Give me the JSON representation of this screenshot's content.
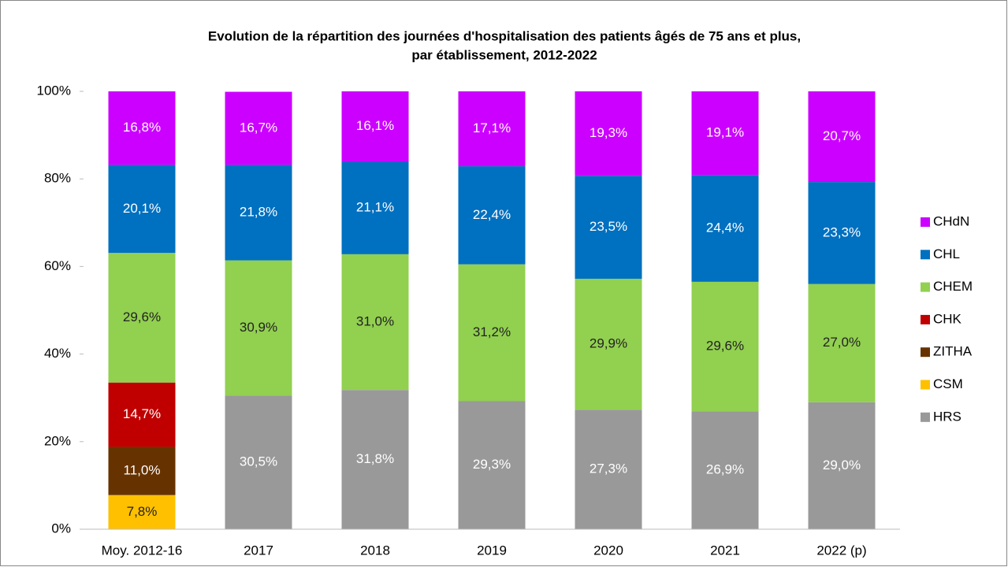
{
  "chart_data": {
    "type": "stacked_bar",
    "title": [
      "Evolution de la répartition des journées d'hospitalisation des patients âgés de 75 ans et plus,",
      "par établissement, 2012-2022"
    ],
    "categories": [
      "Moy. 2012-16",
      "2017",
      "2018",
      "2019",
      "2020",
      "2021",
      "2022 (p)"
    ],
    "series": [
      {
        "name": "HRS",
        "color": "#999999",
        "values": [
          null,
          30.5,
          31.8,
          29.3,
          27.3,
          26.9,
          29.0
        ],
        "value_labels": [
          null,
          "30,5%",
          "31,8%",
          "29,3%",
          "27,3%",
          "26,9%",
          "29,0%"
        ]
      },
      {
        "name": "CSM",
        "color": "#ffc000",
        "values": [
          7.8,
          null,
          null,
          null,
          null,
          null,
          null
        ],
        "value_labels": [
          "7,8%",
          null,
          null,
          null,
          null,
          null,
          null
        ]
      },
      {
        "name": "ZITHA",
        "color": "#663300",
        "values": [
          11.0,
          null,
          null,
          null,
          null,
          null,
          null
        ],
        "value_labels": [
          "11,0%",
          null,
          null,
          null,
          null,
          null,
          null
        ]
      },
      {
        "name": "CHK",
        "color": "#c00000",
        "values": [
          14.7,
          null,
          null,
          null,
          null,
          null,
          null
        ],
        "value_labels": [
          "14,7%",
          null,
          null,
          null,
          null,
          null,
          null
        ]
      },
      {
        "name": "CHEM",
        "color": "#92d050",
        "values": [
          29.6,
          30.9,
          31.0,
          31.2,
          29.9,
          29.6,
          27.0
        ],
        "value_labels": [
          "29,6%",
          "30,9%",
          "31,0%",
          "31,2%",
          "29,9%",
          "29,6%",
          "27,0%"
        ]
      },
      {
        "name": "CHL",
        "color": "#0070c0",
        "values": [
          20.1,
          21.8,
          21.1,
          22.4,
          23.5,
          24.4,
          23.3
        ],
        "value_labels": [
          "20,1%",
          "21,8%",
          "21,1%",
          "22,4%",
          "23,5%",
          "24,4%",
          "23,3%"
        ]
      },
      {
        "name": "CHdN",
        "color": "#cc00ff",
        "values": [
          16.8,
          16.7,
          16.1,
          17.1,
          19.3,
          19.1,
          20.7
        ],
        "value_labels": [
          "16,8%",
          "16,7%",
          "16,1%",
          "17,1%",
          "19,3%",
          "19,1%",
          "20,7%"
        ]
      }
    ],
    "ylim": [
      0,
      100
    ],
    "yticks": [
      {
        "value": 0,
        "label": "0%"
      },
      {
        "value": 20,
        "label": "20%"
      },
      {
        "value": 40,
        "label": "40%"
      },
      {
        "value": 60,
        "label": "60%"
      },
      {
        "value": 80,
        "label": "80%"
      },
      {
        "value": 100,
        "label": "100%"
      }
    ],
    "legend": "right"
  }
}
